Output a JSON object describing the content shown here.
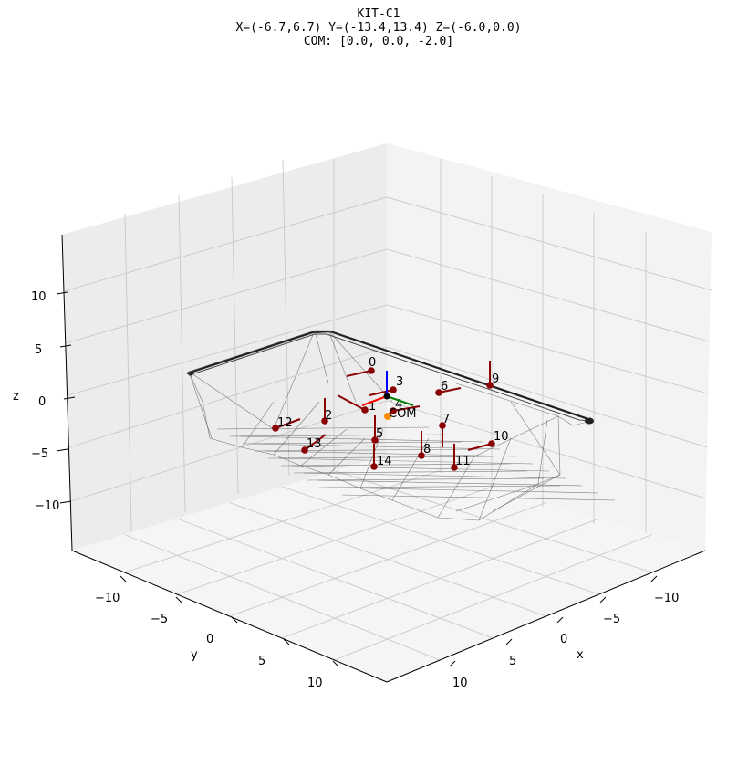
{
  "chart_data": {
    "type": "scatter3d",
    "title_lines": [
      "KIT-C1",
      "X=(-6.7,6.7) Y=(-13.4,13.4) Z=(-6.0,0.0)",
      "COM: [0.0, 0.0, -2.0]"
    ],
    "xlabel": "x",
    "ylabel": "y",
    "zlabel": "z",
    "xticks": [
      "10",
      "5",
      "0",
      "−5",
      "−10"
    ],
    "yticks": [
      "−10",
      "−5",
      "0",
      "5",
      "10"
    ],
    "zticks": [
      "10",
      "5",
      "0",
      "−5",
      "−10"
    ],
    "grid": true,
    "points": [
      {
        "label": "0"
      },
      {
        "label": "1"
      },
      {
        "label": "2"
      },
      {
        "label": "3"
      },
      {
        "label": "4"
      },
      {
        "label": "5"
      },
      {
        "label": "6"
      },
      {
        "label": "7"
      },
      {
        "label": "8"
      },
      {
        "label": "9"
      },
      {
        "label": "10"
      },
      {
        "label": "11"
      },
      {
        "label": "12"
      },
      {
        "label": "13"
      },
      {
        "label": "14"
      }
    ],
    "com": {
      "label": "COM",
      "value": [
        0.0,
        0.0,
        -2.0
      ]
    },
    "colors": {
      "point": "#8b0000",
      "com": "#ff8c00",
      "axis_x": "#ff0000",
      "axis_y": "#008000",
      "axis_z": "#0000ff",
      "mesh": "#555555",
      "pane": "#f2f2f2",
      "grid": "#c8c8c8"
    }
  }
}
